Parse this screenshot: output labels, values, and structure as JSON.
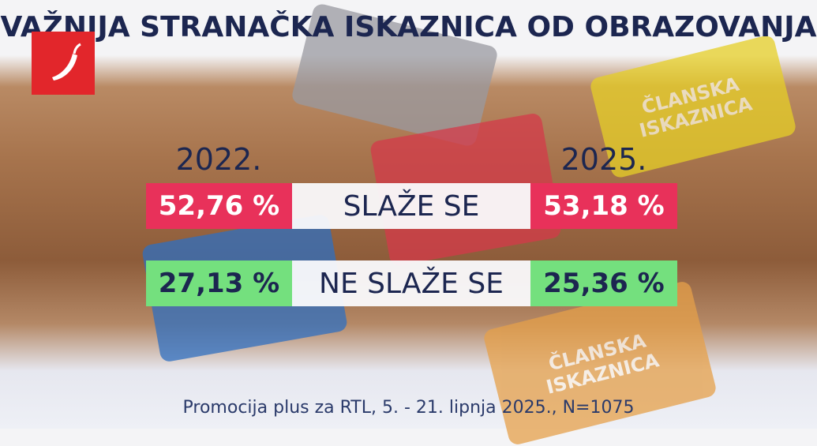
{
  "header": {
    "title": "VAŽNIJA STRANAČKA ISKAZNICA OD OBRAZOVANJA"
  },
  "background": {
    "cards": [
      "ČLANSKA ISKAZNICA",
      "ČLANSKA ISKAZNICA"
    ]
  },
  "table": {
    "columns": [
      "2022.",
      "2025."
    ],
    "rows": [
      {
        "label": "SLAŽE SE",
        "values": [
          "52,76 %",
          "53,18 %"
        ]
      },
      {
        "label": "NE SLAŽE SE",
        "values": [
          "27,13 %",
          "25,36 %"
        ]
      }
    ]
  },
  "footer": {
    "source": "Promocija plus za RTL, 5. - 21. lipnja 2025., N=1075"
  }
}
